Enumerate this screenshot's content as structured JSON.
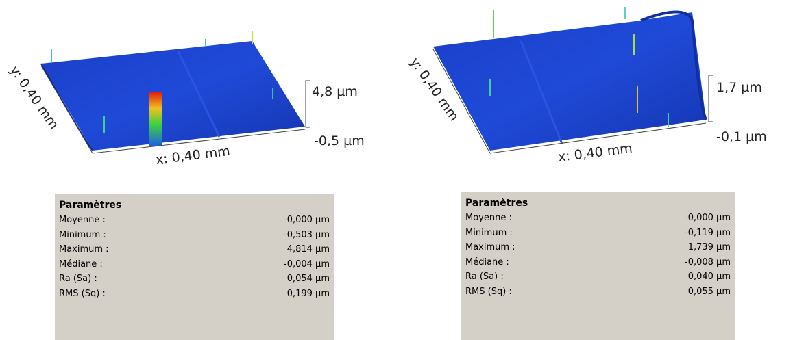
{
  "panels": [
    {
      "surface": {
        "y_label": "y: 0,40 mm",
        "x_label": "x: 0,40 mm",
        "z_max": "4,8 µm",
        "z_min": "-0,5 µm"
      },
      "table": {
        "title": "Paramètres",
        "rows": [
          [
            "Moyenne :",
            "-0,000 µm"
          ],
          [
            "Minimum :",
            "-0,503 µm"
          ],
          [
            "Maximum :",
            "4,814 µm"
          ],
          [
            "Médiane :",
            "-0,004 µm"
          ],
          [
            "Ra (Sa) :",
            "0,054 µm"
          ],
          [
            "RMS (Sq) :",
            "0,199 µm"
          ]
        ]
      }
    },
    {
      "surface": {
        "y_label": "y: 0,40 mm",
        "x_label": "x: 0,40 mm",
        "z_max": "1,7 µm",
        "z_min": "-0,1 µm"
      },
      "table": {
        "title": "Paramètres",
        "rows": [
          [
            "Moyenne :",
            "-0,000 µm"
          ],
          [
            "Minimum :",
            "-0,119 µm"
          ],
          [
            "Maximum :",
            "1,739 µm"
          ],
          [
            "Médiane :",
            "-0,008 µm"
          ],
          [
            "Ra (Sa) :",
            "0,040 µm"
          ],
          [
            "RMS (Sq) :",
            "0,055 µm"
          ]
        ]
      }
    }
  ]
}
